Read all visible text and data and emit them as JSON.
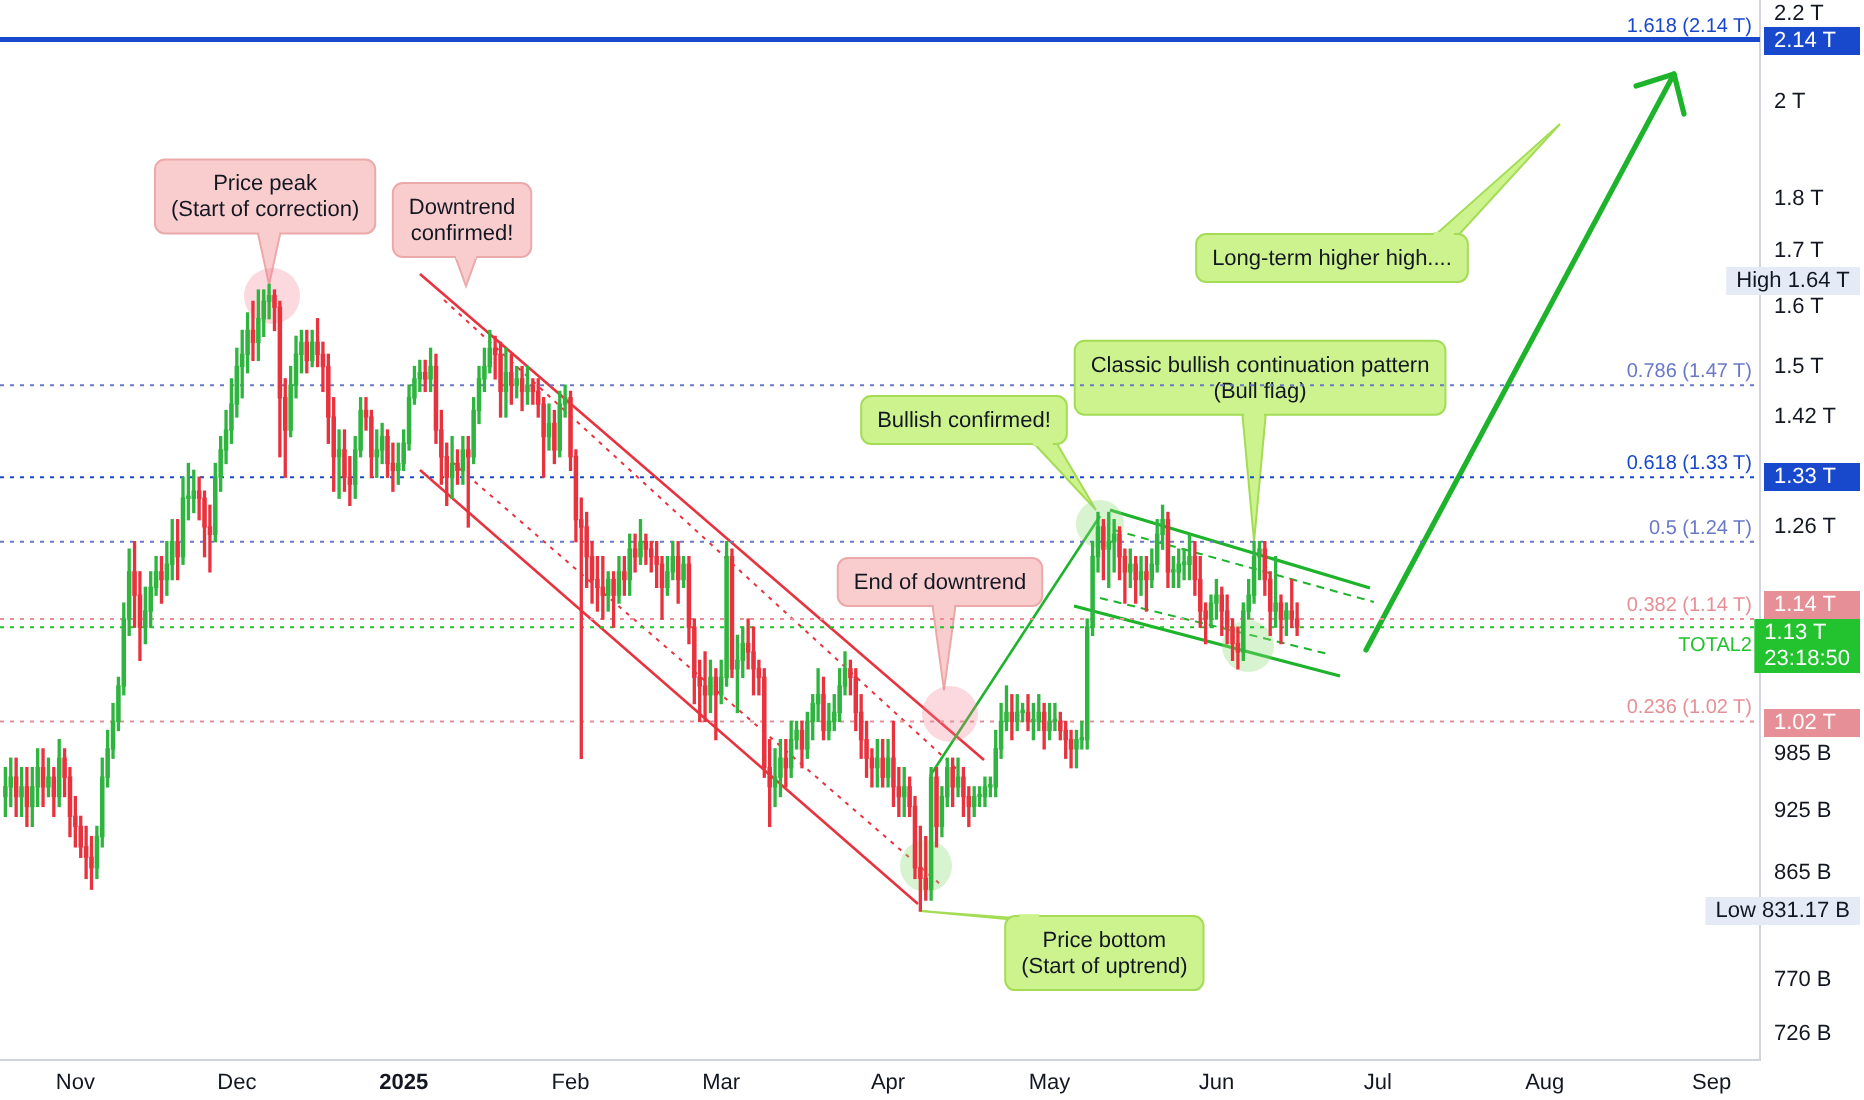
{
  "chart_data": {
    "type": "candlestick",
    "x": [
      "2024-10-19",
      "2024-10-20",
      "2024-10-21",
      "2024-10-22",
      "2024-10-23",
      "2024-10-24",
      "2024-10-25",
      "2024-10-26",
      "2024-10-27",
      "2024-10-28",
      "2024-10-29",
      "2024-10-30",
      "2024-10-31",
      "2024-11-01",
      "2024-11-02",
      "2024-11-03",
      "2024-11-04",
      "2024-11-05",
      "2024-11-06",
      "2024-11-07",
      "2024-11-08",
      "2024-11-09",
      "2024-11-10",
      "2024-11-11",
      "2024-11-12",
      "2024-11-13",
      "2024-11-14",
      "2024-11-15",
      "2024-11-16",
      "2024-11-17",
      "2024-11-18",
      "2024-11-19",
      "2024-11-20",
      "2024-11-21",
      "2024-11-22",
      "2024-11-23",
      "2024-11-24",
      "2024-11-25",
      "2024-11-26",
      "2024-11-27",
      "2024-11-28",
      "2024-11-29",
      "2024-11-30",
      "2024-12-01",
      "2024-12-02",
      "2024-12-03",
      "2024-12-04",
      "2024-12-05",
      "2024-12-06",
      "2024-12-07",
      "2024-12-08",
      "2024-12-09",
      "2024-12-10",
      "2024-12-11",
      "2024-12-12",
      "2024-12-13",
      "2024-12-14",
      "2024-12-15",
      "2024-12-16",
      "2024-12-17",
      "2024-12-18",
      "2024-12-19",
      "2024-12-20",
      "2024-12-21",
      "2024-12-22",
      "2024-12-23",
      "2024-12-24",
      "2024-12-25",
      "2024-12-26",
      "2024-12-27",
      "2024-12-28",
      "2024-12-29",
      "2024-12-30",
      "2024-12-31",
      "2025-01-01",
      "2025-01-02",
      "2025-01-03",
      "2025-01-04",
      "2025-01-05",
      "2025-01-06",
      "2025-01-07",
      "2025-01-08",
      "2025-01-09",
      "2025-01-10",
      "2025-01-11",
      "2025-01-12",
      "2025-01-13",
      "2025-01-14",
      "2025-01-15",
      "2025-01-16",
      "2025-01-17",
      "2025-01-18",
      "2025-01-19",
      "2025-01-20",
      "2025-01-21",
      "2025-01-22",
      "2025-01-23",
      "2025-01-24",
      "2025-01-25",
      "2025-01-26",
      "2025-01-27",
      "2025-01-28",
      "2025-01-29",
      "2025-01-30",
      "2025-01-31",
      "2025-02-01",
      "2025-02-02",
      "2025-02-03",
      "2025-02-04",
      "2025-02-05",
      "2025-02-06",
      "2025-02-07",
      "2025-02-08",
      "2025-02-09",
      "2025-02-10",
      "2025-02-11",
      "2025-02-12",
      "2025-02-13",
      "2025-02-14",
      "2025-02-15",
      "2025-02-16",
      "2025-02-17",
      "2025-02-18",
      "2025-02-19",
      "2025-02-20",
      "2025-02-21",
      "2025-02-22",
      "2025-02-23",
      "2025-02-24",
      "2025-02-25",
      "2025-02-26",
      "2025-02-27",
      "2025-02-28",
      "2025-03-01",
      "2025-03-02",
      "2025-03-03",
      "2025-03-04",
      "2025-03-05",
      "2025-03-06",
      "2025-03-07",
      "2025-03-08",
      "2025-03-09",
      "2025-03-10",
      "2025-03-11",
      "2025-03-12",
      "2025-03-13",
      "2025-03-14",
      "2025-03-15",
      "2025-03-16",
      "2025-03-17",
      "2025-03-18",
      "2025-03-19",
      "2025-03-20",
      "2025-03-21",
      "2025-03-22",
      "2025-03-23",
      "2025-03-24",
      "2025-03-25",
      "2025-03-26",
      "2025-03-27",
      "2025-03-28",
      "2025-03-29",
      "2025-03-30",
      "2025-03-31",
      "2025-04-01",
      "2025-04-02",
      "2025-04-03",
      "2025-04-04",
      "2025-04-05",
      "2025-04-06",
      "2025-04-07",
      "2025-04-08",
      "2025-04-09",
      "2025-04-10",
      "2025-04-11",
      "2025-04-12",
      "2025-04-13",
      "2025-04-14",
      "2025-04-15",
      "2025-04-16",
      "2025-04-17",
      "2025-04-18",
      "2025-04-19",
      "2025-04-20",
      "2025-04-21",
      "2025-04-22",
      "2025-04-23",
      "2025-04-24",
      "2025-04-25",
      "2025-04-26",
      "2025-04-27",
      "2025-04-28",
      "2025-04-29",
      "2025-04-30",
      "2025-05-01",
      "2025-05-02",
      "2025-05-03",
      "2025-05-04",
      "2025-05-05",
      "2025-05-06",
      "2025-05-07",
      "2025-05-08",
      "2025-05-09",
      "2025-05-10",
      "2025-05-11",
      "2025-05-12",
      "2025-05-13",
      "2025-05-14",
      "2025-05-15",
      "2025-05-16",
      "2025-05-17",
      "2025-05-18",
      "2025-05-19",
      "2025-05-20",
      "2025-05-21",
      "2025-05-22",
      "2025-05-23",
      "2025-05-24",
      "2025-05-25",
      "2025-05-26",
      "2025-05-27",
      "2025-05-28",
      "2025-05-29",
      "2025-05-30",
      "2025-05-31",
      "2025-06-01",
      "2025-06-02",
      "2025-06-03",
      "2025-06-04",
      "2025-06-05",
      "2025-06-06",
      "2025-06-07",
      "2025-06-08",
      "2025-06-09",
      "2025-06-10",
      "2025-06-11",
      "2025-06-12",
      "2025-06-13",
      "2025-06-14",
      "2025-06-15",
      "2025-06-16"
    ],
    "ohlc": [
      [
        940000000000.0,
        970000000000.0,
        920000000000.0,
        950000000000.0
      ],
      [
        950000000000.0,
        980000000000.0,
        930000000000.0,
        960000000000.0
      ],
      [
        960000000000.0,
        980000000000.0,
        920000000000.0,
        940000000000.0
      ],
      [
        940000000000.0,
        970000000000.0,
        920000000000.0,
        950000000000.0
      ],
      [
        950000000000.0,
        970000000000.0,
        910000000000.0,
        930000000000.0
      ],
      [
        930000000000.0,
        970000000000.0,
        910000000000.0,
        950000000000.0
      ],
      [
        950000000000.0,
        990000000000.0,
        930000000000.0,
        970000000000.0
      ],
      [
        970000000000.0,
        990000000000.0,
        930000000000.0,
        950000000000.0
      ],
      [
        950000000000.0,
        980000000000.0,
        940000000000.0,
        960000000000.0
      ],
      [
        960000000000.0,
        970000000000.0,
        920000000000.0,
        940000000000.0
      ],
      [
        940000000000.0,
        1000000000000.0,
        930000000000.0,
        980000000000.0
      ],
      [
        980000000000.0,
        990000000000.0,
        940000000000.0,
        960000000000.0
      ],
      [
        960000000000.0,
        970000000000.0,
        900000000000.0,
        920000000000.0
      ],
      [
        920000000000.0,
        940000000000.0,
        890000000000.0,
        910000000000.0
      ],
      [
        910000000000.0,
        920000000000.0,
        880000000000.0,
        890000000000.0
      ],
      [
        890000000000.0,
        910000000000.0,
        860000000000.0,
        880000000000.0
      ],
      [
        880000000000.0,
        900000000000.0,
        850000000000.0,
        870000000000.0
      ],
      [
        870000000000.0,
        910000000000.0,
        860000000000.0,
        900000000000.0
      ],
      [
        900000000000.0,
        980000000000.0,
        890000000000.0,
        960000000000.0
      ],
      [
        960000000000.0,
        1010000000000.0,
        950000000000.0,
        990000000000.0
      ],
      [
        990000000000.0,
        1040000000000.0,
        980000000000.0,
        1020000000000.0
      ],
      [
        1020000000000.0,
        1070000000000.0,
        1010000000000.0,
        1060000000000.0
      ],
      [
        1060000000000.0,
        1160000000000.0,
        1050000000000.0,
        1140000000000.0
      ],
      [
        1140000000000.0,
        1230000000000.0,
        1120000000000.0,
        1200000000000.0
      ],
      [
        1200000000000.0,
        1240000000000.0,
        1130000000000.0,
        1170000000000.0
      ],
      [
        1170000000000.0,
        1200000000000.0,
        1090000000000.0,
        1130000000000.0
      ],
      [
        1130000000000.0,
        1180000000000.0,
        1110000000000.0,
        1150000000000.0
      ],
      [
        1150000000000.0,
        1200000000000.0,
        1130000000000.0,
        1180000000000.0
      ],
      [
        1180000000000.0,
        1220000000000.0,
        1170000000000.0,
        1200000000000.0
      ],
      [
        1200000000000.0,
        1220000000000.0,
        1160000000000.0,
        1190000000000.0
      ],
      [
        1190000000000.0,
        1240000000000.0,
        1170000000000.0,
        1210000000000.0
      ],
      [
        1210000000000.0,
        1270000000000.0,
        1190000000000.0,
        1240000000000.0
      ],
      [
        1240000000000.0,
        1270000000000.0,
        1190000000000.0,
        1220000000000.0
      ],
      [
        1220000000000.0,
        1330000000000.0,
        1210000000000.0,
        1300000000000.0
      ],
      [
        1300000000000.0,
        1350000000000.0,
        1270000000000.0,
        1300000000000.0
      ],
      [
        1300000000000.0,
        1340000000000.0,
        1280000000000.0,
        1310000000000.0
      ],
      [
        1310000000000.0,
        1330000000000.0,
        1270000000000.0,
        1300000000000.0
      ],
      [
        1300000000000.0,
        1310000000000.0,
        1220000000000.0,
        1260000000000.0
      ],
      [
        1260000000000.0,
        1290000000000.0,
        1200000000000.0,
        1250000000000.0
      ],
      [
        1250000000000.0,
        1350000000000.0,
        1240000000000.0,
        1330000000000.0
      ],
      [
        1330000000000.0,
        1390000000000.0,
        1310000000000.0,
        1370000000000.0
      ],
      [
        1370000000000.0,
        1430000000000.0,
        1350000000000.0,
        1400000000000.0
      ],
      [
        1400000000000.0,
        1480000000000.0,
        1380000000000.0,
        1440000000000.0
      ],
      [
        1440000000000.0,
        1530000000000.0,
        1420000000000.0,
        1500000000000.0
      ],
      [
        1500000000000.0,
        1560000000000.0,
        1450000000000.0,
        1520000000000.0
      ],
      [
        1520000000000.0,
        1590000000000.0,
        1490000000000.0,
        1560000000000.0
      ],
      [
        1560000000000.0,
        1610000000000.0,
        1510000000000.0,
        1540000000000.0
      ],
      [
        1540000000000.0,
        1630000000000.0,
        1510000000000.0,
        1580000000000.0
      ],
      [
        1580000000000.0,
        1630000000000.0,
        1550000000000.0,
        1610000000000.0
      ],
      [
        1610000000000.0,
        1640000000000.0,
        1580000000000.0,
        1620000000000.0
      ],
      [
        1620000000000.0,
        1630000000000.0,
        1560000000000.0,
        1600000000000.0
      ],
      [
        1600000000000.0,
        1610000000000.0,
        1360000000000.0,
        1450000000000.0
      ],
      [
        1450000000000.0,
        1480000000000.0,
        1330000000000.0,
        1400000000000.0
      ],
      [
        1400000000000.0,
        1500000000000.0,
        1390000000000.0,
        1470000000000.0
      ],
      [
        1470000000000.0,
        1550000000000.0,
        1450000000000.0,
        1520000000000.0
      ],
      [
        1520000000000.0,
        1560000000000.0,
        1490000000000.0,
        1540000000000.0
      ],
      [
        1540000000000.0,
        1560000000000.0,
        1490000000000.0,
        1510000000000.0
      ],
      [
        1510000000000.0,
        1560000000000.0,
        1500000000000.0,
        1540000000000.0
      ],
      [
        1540000000000.0,
        1580000000000.0,
        1500000000000.0,
        1520000000000.0
      ],
      [
        1520000000000.0,
        1540000000000.0,
        1460000000000.0,
        1500000000000.0
      ],
      [
        1500000000000.0,
        1520000000000.0,
        1380000000000.0,
        1420000000000.0
      ],
      [
        1420000000000.0,
        1450000000000.0,
        1310000000000.0,
        1360000000000.0
      ],
      [
        1360000000000.0,
        1400000000000.0,
        1300000000000.0,
        1370000000000.0
      ],
      [
        1370000000000.0,
        1400000000000.0,
        1310000000000.0,
        1330000000000.0
      ],
      [
        1330000000000.0,
        1360000000000.0,
        1290000000000.0,
        1320000000000.0
      ],
      [
        1320000000000.0,
        1390000000000.0,
        1300000000000.0,
        1370000000000.0
      ],
      [
        1370000000000.0,
        1450000000000.0,
        1360000000000.0,
        1430000000000.0
      ],
      [
        1430000000000.0,
        1450000000000.0,
        1400000000000.0,
        1420000000000.0
      ],
      [
        1420000000000.0,
        1430000000000.0,
        1330000000000.0,
        1360000000000.0
      ],
      [
        1360000000000.0,
        1400000000000.0,
        1330000000000.0,
        1370000000000.0
      ],
      [
        1370000000000.0,
        1410000000000.0,
        1350000000000.0,
        1390000000000.0
      ],
      [
        1390000000000.0,
        1400000000000.0,
        1330000000000.0,
        1350000000000.0
      ],
      [
        1350000000000.0,
        1380000000000.0,
        1310000000000.0,
        1340000000000.0
      ],
      [
        1340000000000.0,
        1380000000000.0,
        1320000000000.0,
        1350000000000.0
      ],
      [
        1350000000000.0,
        1400000000000.0,
        1340000000000.0,
        1380000000000.0
      ],
      [
        1380000000000.0,
        1470000000000.0,
        1370000000000.0,
        1450000000000.0
      ],
      [
        1450000000000.0,
        1500000000000.0,
        1440000000000.0,
        1480000000000.0
      ],
      [
        1480000000000.0,
        1510000000000.0,
        1460000000000.0,
        1490000000000.0
      ],
      [
        1490000000000.0,
        1510000000000.0,
        1460000000000.0,
        1480000000000.0
      ],
      [
        1480000000000.0,
        1530000000000.0,
        1460000000000.0,
        1500000000000.0
      ],
      [
        1500000000000.0,
        1520000000000.0,
        1380000000000.0,
        1400000000000.0
      ],
      [
        1400000000000.0,
        1430000000000.0,
        1320000000000.0,
        1360000000000.0
      ],
      [
        1360000000000.0,
        1380000000000.0,
        1290000000000.0,
        1330000000000.0
      ],
      [
        1330000000000.0,
        1390000000000.0,
        1300000000000.0,
        1350000000000.0
      ],
      [
        1350000000000.0,
        1370000000000.0,
        1320000000000.0,
        1340000000000.0
      ],
      [
        1340000000000.0,
        1390000000000.0,
        1320000000000.0,
        1370000000000.0
      ],
      [
        1370000000000.0,
        1390000000000.0,
        1260000000000.0,
        1360000000000.0
      ],
      [
        1360000000000.0,
        1450000000000.0,
        1350000000000.0,
        1430000000000.0
      ],
      [
        1430000000000.0,
        1500000000000.0,
        1410000000000.0,
        1480000000000.0
      ],
      [
        1480000000000.0,
        1530000000000.0,
        1460000000000.0,
        1500000000000.0
      ],
      [
        1500000000000.0,
        1560000000000.0,
        1490000000000.0,
        1530000000000.0
      ],
      [
        1530000000000.0,
        1550000000000.0,
        1480000000000.0,
        1520000000000.0
      ],
      [
        1520000000000.0,
        1540000000000.0,
        1420000000000.0,
        1460000000000.0
      ],
      [
        1460000000000.0,
        1530000000000.0,
        1420000000000.0,
        1490000000000.0
      ],
      [
        1490000000000.0,
        1520000000000.0,
        1440000000000.0,
        1470000000000.0
      ],
      [
        1470000000000.0,
        1500000000000.0,
        1450000000000.0,
        1480000000000.0
      ],
      [
        1480000000000.0,
        1500000000000.0,
        1430000000000.0,
        1460000000000.0
      ],
      [
        1460000000000.0,
        1500000000000.0,
        1440000000000.0,
        1470000000000.0
      ],
      [
        1470000000000.0,
        1480000000000.0,
        1440000000000.0,
        1460000000000.0
      ],
      [
        1460000000000.0,
        1480000000000.0,
        1420000000000.0,
        1440000000000.0
      ],
      [
        1440000000000.0,
        1450000000000.0,
        1330000000000.0,
        1390000000000.0
      ],
      [
        1390000000000.0,
        1440000000000.0,
        1370000000000.0,
        1410000000000.0
      ],
      [
        1410000000000.0,
        1430000000000.0,
        1350000000000.0,
        1370000000000.0
      ],
      [
        1370000000000.0,
        1460000000000.0,
        1360000000000.0,
        1440000000000.0
      ],
      [
        1440000000000.0,
        1470000000000.0,
        1420000000000.0,
        1450000000000.0
      ],
      [
        1450000000000.0,
        1460000000000.0,
        1340000000000.0,
        1360000000000.0
      ],
      [
        1360000000000.0,
        1370000000000.0,
        1240000000000.0,
        1270000000000.0
      ],
      [
        1270000000000.0,
        1300000000000.0,
        980000000000.0,
        1260000000000.0
      ],
      [
        1260000000000.0,
        1280000000000.0,
        1180000000000.0,
        1220000000000.0
      ],
      [
        1220000000000.0,
        1240000000000.0,
        1160000000000.0,
        1190000000000.0
      ],
      [
        1190000000000.0,
        1220000000000.0,
        1150000000000.0,
        1180000000000.0
      ],
      [
        1180000000000.0,
        1220000000000.0,
        1140000000000.0,
        1170000000000.0
      ],
      [
        1170000000000.0,
        1200000000000.0,
        1150000000000.0,
        1190000000000.0
      ],
      [
        1190000000000.0,
        1200000000000.0,
        1130000000000.0,
        1170000000000.0
      ],
      [
        1170000000000.0,
        1220000000000.0,
        1160000000000.0,
        1200000000000.0
      ],
      [
        1200000000000.0,
        1220000000000.0,
        1170000000000.0,
        1190000000000.0
      ],
      [
        1190000000000.0,
        1250000000000.0,
        1170000000000.0,
        1230000000000.0
      ],
      [
        1230000000000.0,
        1250000000000.0,
        1200000000000.0,
        1220000000000.0
      ],
      [
        1220000000000.0,
        1270000000000.0,
        1210000000000.0,
        1240000000000.0
      ],
      [
        1240000000000.0,
        1250000000000.0,
        1210000000000.0,
        1230000000000.0
      ],
      [
        1230000000000.0,
        1240000000000.0,
        1200000000000.0,
        1220000000000.0
      ],
      [
        1220000000000.0,
        1240000000000.0,
        1180000000000.0,
        1210000000000.0
      ],
      [
        1210000000000.0,
        1220000000000.0,
        1140000000000.0,
        1180000000000.0
      ],
      [
        1180000000000.0,
        1220000000000.0,
        1170000000000.0,
        1200000000000.0
      ],
      [
        1200000000000.0,
        1240000000000.0,
        1190000000000.0,
        1220000000000.0
      ],
      [
        1220000000000.0,
        1240000000000.0,
        1160000000000.0,
        1190000000000.0
      ],
      [
        1190000000000.0,
        1220000000000.0,
        1180000000000.0,
        1210000000000.0
      ],
      [
        1210000000000.0,
        1220000000000.0,
        1110000000000.0,
        1130000000000.0
      ],
      [
        1130000000000.0,
        1140000000000.0,
        1040000000000.0,
        1070000000000.0
      ],
      [
        1070000000000.0,
        1090000000000.0,
        1020000000000.0,
        1060000000000.0
      ],
      [
        1060000000000.0,
        1100000000000.0,
        1020000000000.0,
        1050000000000.0
      ],
      [
        1050000000000.0,
        1090000000000.0,
        1030000000000.0,
        1070000000000.0
      ],
      [
        1070000000000.0,
        1080000000000.0,
        1000000000000.0,
        1050000000000.0
      ],
      [
        1050000000000.0,
        1090000000000.0,
        1040000000000.0,
        1070000000000.0
      ],
      [
        1070000000000.0,
        1240000000000.0,
        1060000000000.0,
        1220000000000.0
      ],
      [
        1220000000000.0,
        1230000000000.0,
        1070000000000.0,
        1080000000000.0
      ],
      [
        1080000000000.0,
        1120000000000.0,
        1030000000000.0,
        1090000000000.0
      ],
      [
        1090000000000.0,
        1130000000000.0,
        1070000000000.0,
        1110000000000.0
      ],
      [
        1110000000000.0,
        1140000000000.0,
        1080000000000.0,
        1100000000000.0
      ],
      [
        1100000000000.0,
        1130000000000.0,
        1050000000000.0,
        1080000000000.0
      ],
      [
        1080000000000.0,
        1090000000000.0,
        1050000000000.0,
        1070000000000.0
      ],
      [
        1070000000000.0,
        1080000000000.0,
        960000000000.0,
        970000000000.0
      ],
      [
        970000000000.0,
        1000000000000.0,
        910000000000.0,
        950000000000.0
      ],
      [
        950000000000.0,
        990000000000.0,
        930000000000.0,
        960000000000.0
      ],
      [
        960000000000.0,
        1000000000000.0,
        940000000000.0,
        980000000000.0
      ],
      [
        980000000000.0,
        1000000000000.0,
        950000000000.0,
        970000000000.0
      ],
      [
        970000000000.0,
        1020000000000.0,
        960000000000.0,
        1000000000000.0
      ],
      [
        1000000000000.0,
        1020000000000.0,
        990000000000.0,
        1010000000000.0
      ],
      [
        1010000000000.0,
        1020000000000.0,
        970000000000.0,
        990000000000.0
      ],
      [
        990000000000.0,
        1030000000000.0,
        980000000000.0,
        1020000000000.0
      ],
      [
        1020000000000.0,
        1050000000000.0,
        1000000000000.0,
        1040000000000.0
      ],
      [
        1040000000000.0,
        1080000000000.0,
        1020000000000.0,
        1050000000000.0
      ],
      [
        1050000000000.0,
        1070000000000.0,
        1000000000000.0,
        1010000000000.0
      ],
      [
        1010000000000.0,
        1040000000000.0,
        1000000000000.0,
        1020000000000.0
      ],
      [
        1020000000000.0,
        1050000000000.0,
        1010000000000.0,
        1030000000000.0
      ],
      [
        1030000000000.0,
        1080000000000.0,
        1020000000000.0,
        1060000000000.0
      ],
      [
        1060000000000.0,
        1100000000000.0,
        1050000000000.0,
        1080000000000.0
      ],
      [
        1080000000000.0,
        1090000000000.0,
        1050000000000.0,
        1070000000000.0
      ],
      [
        1070000000000.0,
        1080000000000.0,
        1010000000000.0,
        1030000000000.0
      ],
      [
        1030000000000.0,
        1050000000000.0,
        980000000000.0,
        1000000000000.0
      ],
      [
        1000000000000.0,
        1020000000000.0,
        960000000000.0,
        980000000000.0
      ],
      [
        980000000000.0,
        990000000000.0,
        950000000000.0,
        970000000000.0
      ],
      [
        970000000000.0,
        1000000000000.0,
        950000000000.0,
        980000000000.0
      ],
      [
        980000000000.0,
        1000000000000.0,
        950000000000.0,
        960000000000.0
      ],
      [
        960000000000.0,
        1000000000000.0,
        950000000000.0,
        980000000000.0
      ],
      [
        980000000000.0,
        1020000000000.0,
        930000000000.0,
        950000000000.0
      ],
      [
        950000000000.0,
        970000000000.0,
        920000000000.0,
        940000000000.0
      ],
      [
        940000000000.0,
        970000000000.0,
        920000000000.0,
        950000000000.0
      ],
      [
        950000000000.0,
        960000000000.0,
        920000000000.0,
        930000000000.0
      ],
      [
        930000000000.0,
        940000000000.0,
        860000000000.0,
        870000000000.0
      ],
      [
        870000000000.0,
        910000000000.0,
        830000000000.0,
        860000000000.0
      ],
      [
        860000000000.0,
        900000000000.0,
        840000000000.0,
        850000000000.0
      ],
      [
        850000000000.0,
        970000000000.0,
        840000000000.0,
        960000000000.0
      ],
      [
        960000000000.0,
        970000000000.0,
        890000000000.0,
        910000000000.0
      ],
      [
        910000000000.0,
        950000000000.0,
        900000000000.0,
        940000000000.0
      ],
      [
        940000000000.0,
        980000000000.0,
        930000000000.0,
        970000000000.0
      ],
      [
        970000000000.0,
        980000000000.0,
        930000000000.0,
        950000000000.0
      ],
      [
        950000000000.0,
        980000000000.0,
        940000000000.0,
        960000000000.0
      ],
      [
        960000000000.0,
        970000000000.0,
        920000000000.0,
        940000000000.0
      ],
      [
        940000000000.0,
        950000000000.0,
        910000000000.0,
        930000000000.0
      ],
      [
        930000000000.0,
        950000000000.0,
        920000000000.0,
        940000000000.0
      ],
      [
        940000000000.0,
        950000000000.0,
        930000000000.0,
        940000000000.0
      ],
      [
        940000000000.0,
        960000000000.0,
        930000000000.0,
        950000000000.0
      ],
      [
        950000000000.0,
        960000000000.0,
        940000000000.0,
        950000000000.0
      ],
      [
        950000000000.0,
        1010000000000.0,
        940000000000.0,
        990000000000.0
      ],
      [
        990000000000.0,
        1040000000000.0,
        980000000000.0,
        1020000000000.0
      ],
      [
        1020000000000.0,
        1060000000000.0,
        1010000000000.0,
        1030000000000.0
      ],
      [
        1030000000000.0,
        1050000000000.0,
        1000000000000.0,
        1020000000000.0
      ],
      [
        1020000000000.0,
        1050000000000.0,
        1010000000000.0,
        1030000000000.0
      ],
      [
        1030000000000.0,
        1040000000000.0,
        1020000000000.0,
        1030000000000.0
      ],
      [
        1030000000000.0,
        1050000000000.0,
        1010000000000.0,
        1020000000000.0
      ],
      [
        1020000000000.0,
        1040000000000.0,
        1000000000000.0,
        1020000000000.0
      ],
      [
        1020000000000.0,
        1050000000000.0,
        1010000000000.0,
        1030000000000.0
      ],
      [
        1030000000000.0,
        1040000000000.0,
        990000000000.0,
        1010000000000.0
      ],
      [
        1010000000000.0,
        1040000000000.0,
        1000000000000.0,
        1020000000000.0
      ],
      [
        1020000000000.0,
        1040000000000.0,
        1010000000000.0,
        1020000000000.0
      ],
      [
        1020000000000.0,
        1030000000000.0,
        1000000000000.0,
        1010000000000.0
      ],
      [
        1010000000000.0,
        1020000000000.0,
        980000000000.0,
        1000000000000.0
      ],
      [
        1000000000000.0,
        1010000000000.0,
        970000000000.0,
        990000000000.0
      ],
      [
        990000000000.0,
        1010000000000.0,
        970000000000.0,
        1000000000000.0
      ],
      [
        1000000000000.0,
        1020000000000.0,
        990000000000.0,
        1000000000000.0
      ],
      [
        1000000000000.0,
        1140000000000.0,
        990000000000.0,
        1130000000000.0
      ],
      [
        1130000000000.0,
        1240000000000.0,
        1120000000000.0,
        1220000000000.0
      ],
      [
        1220000000000.0,
        1280000000000.0,
        1200000000000.0,
        1260000000000.0
      ],
      [
        1260000000000.0,
        1270000000000.0,
        1190000000000.0,
        1230000000000.0
      ],
      [
        1230000000000.0,
        1280000000000.0,
        1180000000000.0,
        1240000000000.0
      ],
      [
        1240000000000.0,
        1270000000000.0,
        1200000000000.0,
        1250000000000.0
      ],
      [
        1250000000000.0,
        1260000000000.0,
        1190000000000.0,
        1220000000000.0
      ],
      [
        1220000000000.0,
        1230000000000.0,
        1160000000000.0,
        1200000000000.0
      ],
      [
        1200000000000.0,
        1230000000000.0,
        1180000000000.0,
        1210000000000.0
      ],
      [
        1210000000000.0,
        1220000000000.0,
        1160000000000.0,
        1190000000000.0
      ],
      [
        1190000000000.0,
        1220000000000.0,
        1170000000000.0,
        1200000000000.0
      ],
      [
        1200000000000.0,
        1220000000000.0,
        1150000000000.0,
        1190000000000.0
      ],
      [
        1190000000000.0,
        1230000000000.0,
        1180000000000.0,
        1210000000000.0
      ],
      [
        1210000000000.0,
        1270000000000.0,
        1200000000000.0,
        1250000000000.0
      ],
      [
        1250000000000.0,
        1290000000000.0,
        1230000000000.0,
        1270000000000.0
      ],
      [
        1270000000000.0,
        1280000000000.0,
        1180000000000.0,
        1200000000000.0
      ],
      [
        1200000000000.0,
        1220000000000.0,
        1180000000000.0,
        1200000000000.0
      ],
      [
        1200000000000.0,
        1230000000000.0,
        1180000000000.0,
        1210000000000.0
      ],
      [
        1210000000000.0,
        1230000000000.0,
        1190000000000.0,
        1210000000000.0
      ],
      [
        1210000000000.0,
        1250000000000.0,
        1190000000000.0,
        1220000000000.0
      ],
      [
        1220000000000.0,
        1240000000000.0,
        1170000000000.0,
        1190000000000.0
      ],
      [
        1190000000000.0,
        1220000000000.0,
        1130000000000.0,
        1150000000000.0
      ],
      [
        1150000000000.0,
        1160000000000.0,
        1110000000000.0,
        1140000000000.0
      ],
      [
        1140000000000.0,
        1170000000000.0,
        1130000000000.0,
        1160000000000.0
      ],
      [
        1160000000000.0,
        1190000000000.0,
        1140000000000.0,
        1170000000000.0
      ],
      [
        1170000000000.0,
        1180000000000.0,
        1120000000000.0,
        1150000000000.0
      ],
      [
        1150000000000.0,
        1170000000000.0,
        1110000000000.0,
        1130000000000.0
      ],
      [
        1130000000000.0,
        1140000000000.0,
        1090000000000.0,
        1110000000000.0
      ],
      [
        1110000000000.0,
        1130000000000.0,
        1080000000000.0,
        1100000000000.0
      ],
      [
        1100000000000.0,
        1160000000000.0,
        1090000000000.0,
        1150000000000.0
      ],
      [
        1150000000000.0,
        1190000000000.0,
        1140000000000.0,
        1170000000000.0
      ],
      [
        1170000000000.0,
        1240000000000.0,
        1160000000000.0,
        1220000000000.0
      ],
      [
        1220000000000.0,
        1240000000000.0,
        1190000000000.0,
        1230000000000.0
      ],
      [
        1230000000000.0,
        1240000000000.0,
        1170000000000.0,
        1190000000000.0
      ],
      [
        1190000000000.0,
        1200000000000.0,
        1120000000000.0,
        1150000000000.0
      ],
      [
        1150000000000.0,
        1220000000000.0,
        1130000000000.0,
        1160000000000.0
      ],
      [
        1160000000000.0,
        1170000000000.0,
        1110000000000.0,
        1140000000000.0
      ],
      [
        1140000000000.0,
        1160000000000.0,
        1120000000000.0,
        1150000000000.0
      ],
      [
        1150000000000.0,
        1190000000000.0,
        1130000000000.0,
        1140000000000.0
      ],
      [
        1140000000000.0,
        1160000000000.0,
        1120000000000.0,
        1130000000000.0
      ]
    ],
    "xlim": [
      "2024-10-18",
      "2025-09-10"
    ],
    "xticks": [
      {
        "value": "2024-11-01",
        "label": "Nov"
      },
      {
        "value": "2024-12-01",
        "label": "Dec"
      },
      {
        "value": "2025-01-01",
        "label": "2025"
      },
      {
        "value": "2025-02-01",
        "label": "Feb"
      },
      {
        "value": "2025-03-01",
        "label": "Mar"
      },
      {
        "value": "2025-04-01",
        "label": "Apr"
      },
      {
        "value": "2025-05-01",
        "label": "May"
      },
      {
        "value": "2025-06-01",
        "label": "Jun"
      },
      {
        "value": "2025-07-01",
        "label": "Jul"
      },
      {
        "value": "2025-08-01",
        "label": "Aug"
      },
      {
        "value": "2025-09-01",
        "label": "Sep"
      }
    ],
    "ylim": [
      706000000000.0,
      2234000000000.0
    ],
    "yticks": [
      {
        "value": 2200000000000.0,
        "label": "2.2 T"
      },
      {
        "value": 2000000000000.0,
        "label": "2 T"
      },
      {
        "value": 1800000000000.0,
        "label": "1.8 T"
      },
      {
        "value": 1700000000000.0,
        "label": "1.7 T"
      },
      {
        "value": 1600000000000.0,
        "label": "1.6 T"
      },
      {
        "value": 1500000000000.0,
        "label": "1.5 T"
      },
      {
        "value": 1420000000000.0,
        "label": "1.42 T"
      },
      {
        "value": 1260000000000.0,
        "label": "1.26 T"
      },
      {
        "value": 985000000000.0,
        "label": "985 B"
      },
      {
        "value": 925000000000.0,
        "label": "925 B"
      },
      {
        "value": 865000000000.0,
        "label": "865 B"
      },
      {
        "value": 770000000000.0,
        "label": "770 B"
      },
      {
        "value": 726000000000.0,
        "label": "726 B"
      }
    ],
    "log": true,
    "grid": false,
    "ref_lines": [
      {
        "axis": "y",
        "value": 2140000000000.0,
        "label": "1.618 (2.14 T)",
        "color": "#1848cc",
        "line_style": "solid"
      },
      {
        "axis": "y",
        "value": 1470000000000.0,
        "label": "0.786 (1.47 T)",
        "color": "#6a78c8",
        "line_style": "dotted"
      },
      {
        "axis": "y",
        "value": 1330000000000.0,
        "label": "0.618 (1.33 T)",
        "color": "#1848cc",
        "line_style": "dotted"
      },
      {
        "axis": "y",
        "value": 1240000000000.0,
        "label": "0.5 (1.24 T)",
        "color": "#6a78c8",
        "line_style": "dotted"
      },
      {
        "axis": "y",
        "value": 1140000000000.0,
        "label": "0.382 (1.14 T)",
        "color": "#e68f97",
        "line_style": "dotted"
      },
      {
        "axis": "y",
        "value": 1020000000000.0,
        "label": "0.236 (1.02 T)",
        "color": "#e68f97",
        "line_style": "dotted"
      },
      {
        "axis": "y",
        "value": 1130000000000.0,
        "label": "TOTAL2",
        "color": "#22c32e",
        "line_style": "dotted"
      }
    ],
    "annotations": [
      {
        "text": "Price peak\n(Start of correction)",
        "x": "2024-12-07",
        "y": 1640000000000.0
      },
      "Downtrend\nconfirmed!",
      "End of downtrend",
      {
        "text": "Price bottom\n(Start of uptrend)",
        "x": "2025-04-07",
        "y": 830000000000.0
      },
      "Bullish confirmed!",
      {
        "text": "Classic bullish continuation pattern\n(Bull flag)",
        "x": "2025-06-08",
        "y": 1240000000000.0
      },
      "Long-term higher high....",
      "2.14 T",
      "High 1.64 T",
      "1.33 T",
      "1.14 T",
      "1.13 T\n23:18:50",
      "1.02 T",
      "Low 831.17 B"
    ]
  }
}
